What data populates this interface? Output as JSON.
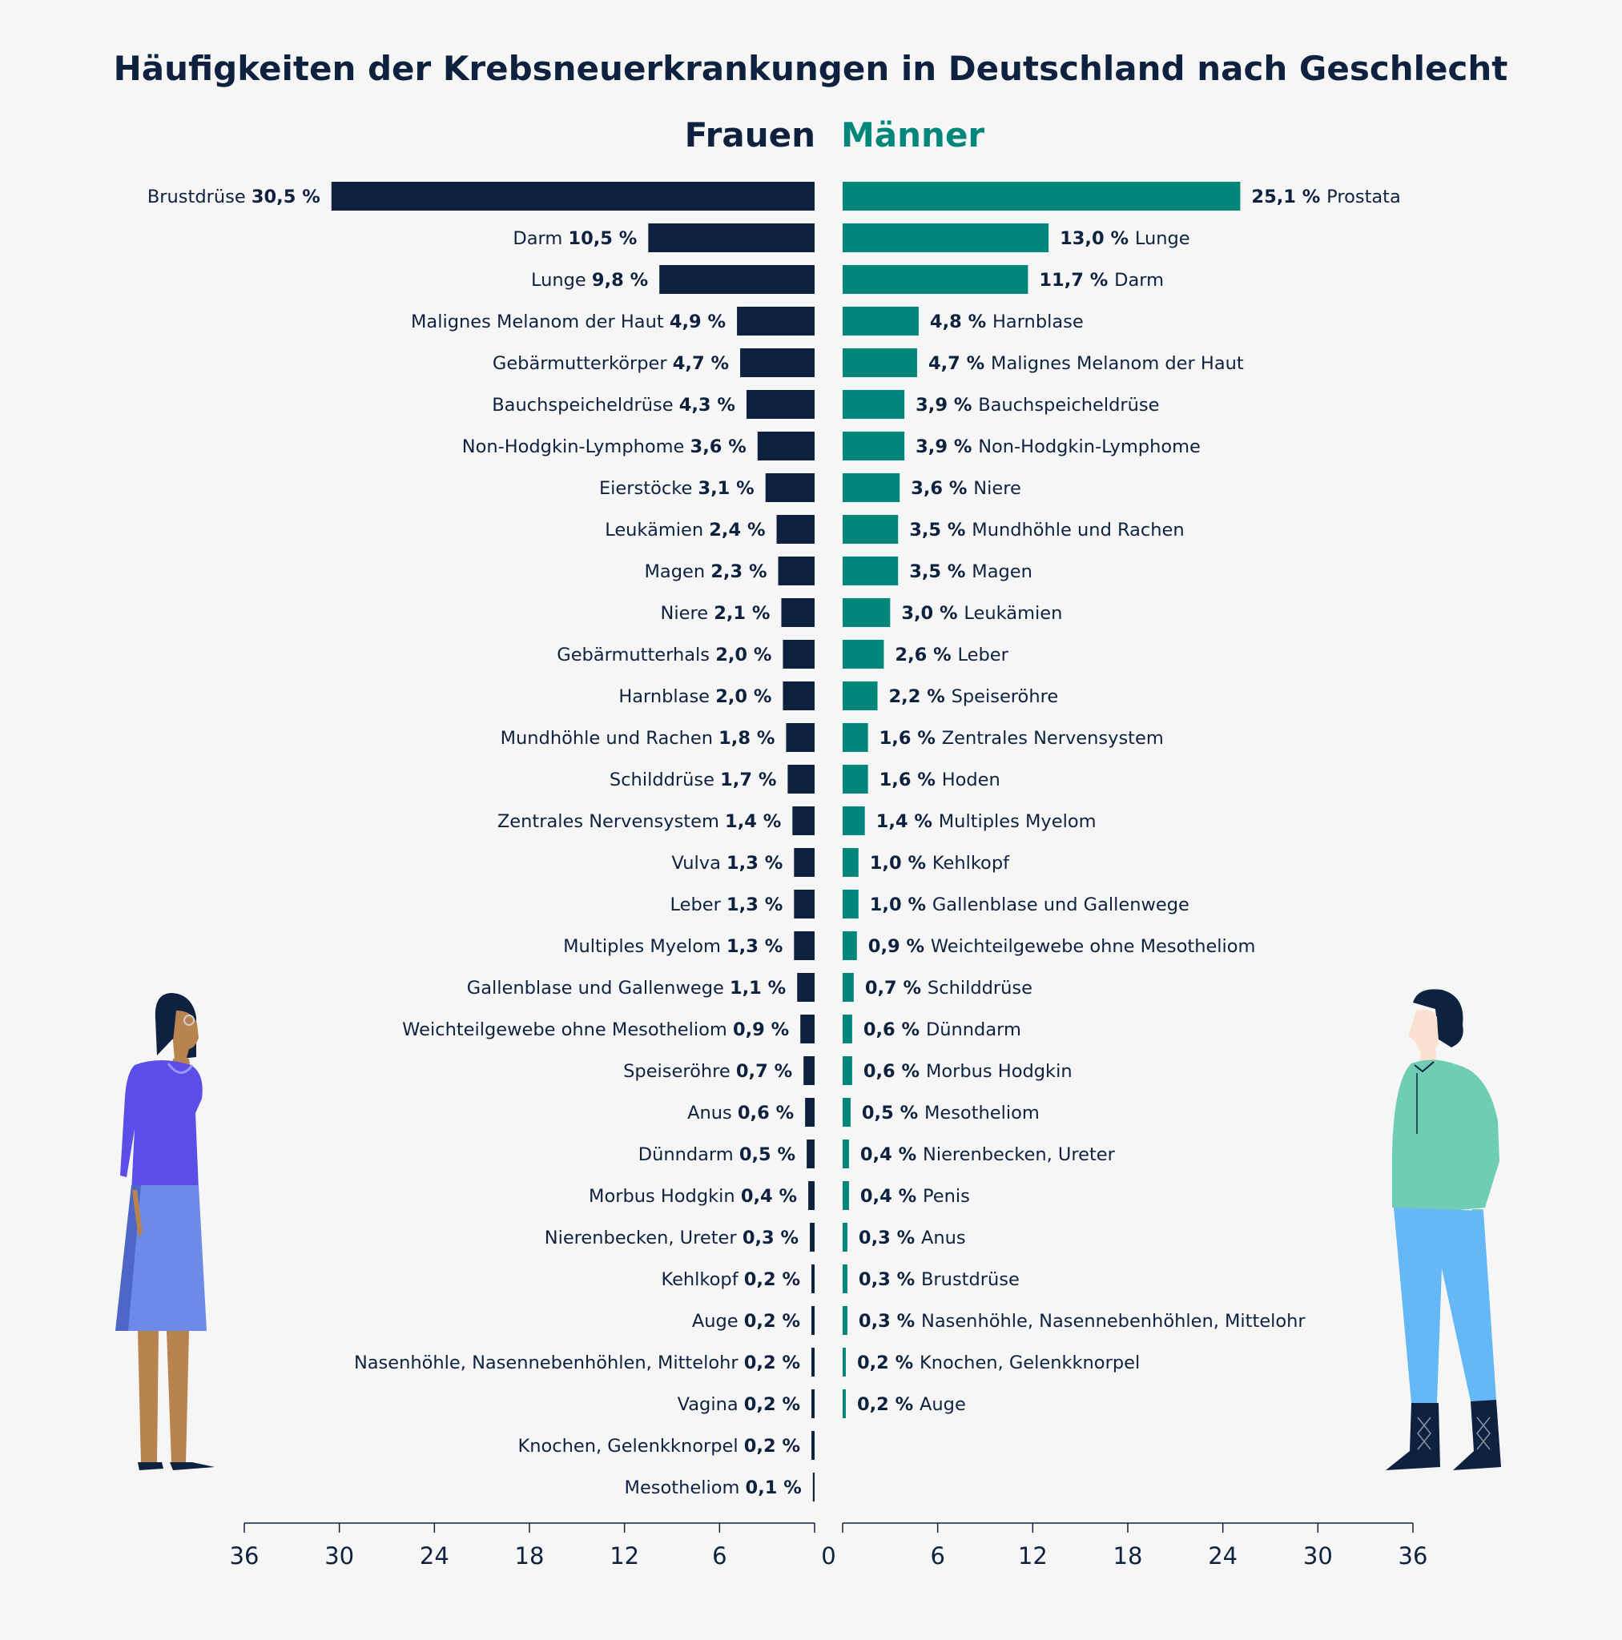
{
  "chart_data": {
    "type": "bar",
    "title": "Häufigkeiten der Krebsneuerkrankungen in Deutschland nach Geschlecht",
    "axis": {
      "ticks": [
        0,
        6,
        12,
        18,
        24,
        30,
        36
      ],
      "range": [
        0,
        36
      ]
    },
    "colors": {
      "frauen": "#0e2240",
      "maenner": "#00867b",
      "text": "#0e2240"
    },
    "series": [
      {
        "name": "Frauen",
        "side": "left",
        "items": [
          {
            "label": "Brustdrüse",
            "value": 30.5,
            "value_text": "30,5 %"
          },
          {
            "label": "Darm",
            "value": 10.5,
            "value_text": "10,5 %"
          },
          {
            "label": "Lunge",
            "value": 9.8,
            "value_text": "9,8 %"
          },
          {
            "label": "Malignes Melanom der Haut",
            "value": 4.9,
            "value_text": "4,9 %"
          },
          {
            "label": "Gebärmutterkörper",
            "value": 4.7,
            "value_text": "4,7 %"
          },
          {
            "label": "Bauchspeicheldrüse",
            "value": 4.3,
            "value_text": "4,3 %"
          },
          {
            "label": "Non-Hodgkin-Lymphome",
            "value": 3.6,
            "value_text": "3,6 %"
          },
          {
            "label": "Eierstöcke",
            "value": 3.1,
            "value_text": "3,1 %"
          },
          {
            "label": "Leukämien",
            "value": 2.4,
            "value_text": "2,4 %"
          },
          {
            "label": "Magen",
            "value": 2.3,
            "value_text": "2,3 %"
          },
          {
            "label": "Niere",
            "value": 2.1,
            "value_text": "2,1 %"
          },
          {
            "label": "Gebärmutterhals",
            "value": 2.0,
            "value_text": "2,0 %"
          },
          {
            "label": "Harnblase",
            "value": 2.0,
            "value_text": "2,0 %"
          },
          {
            "label": "Mundhöhle und Rachen",
            "value": 1.8,
            "value_text": "1,8 %"
          },
          {
            "label": "Schilddrüse",
            "value": 1.7,
            "value_text": "1,7 %"
          },
          {
            "label": "Zentrales Nervensystem",
            "value": 1.4,
            "value_text": "1,4 %"
          },
          {
            "label": "Vulva",
            "value": 1.3,
            "value_text": "1,3 %"
          },
          {
            "label": "Leber",
            "value": 1.3,
            "value_text": "1,3 %"
          },
          {
            "label": "Multiples Myelom",
            "value": 1.3,
            "value_text": "1,3 %"
          },
          {
            "label": "Gallenblase und Gallenwege",
            "value": 1.1,
            "value_text": "1,1 %"
          },
          {
            "label": "Weichteilgewebe ohne Mesotheliom",
            "value": 0.9,
            "value_text": "0,9 %"
          },
          {
            "label": "Speiseröhre",
            "value": 0.7,
            "value_text": "0,7 %"
          },
          {
            "label": "Anus",
            "value": 0.6,
            "value_text": "0,6 %"
          },
          {
            "label": "Dünndarm",
            "value": 0.5,
            "value_text": "0,5 %"
          },
          {
            "label": "Morbus Hodgkin",
            "value": 0.4,
            "value_text": "0,4 %"
          },
          {
            "label": "Nierenbecken, Ureter",
            "value": 0.3,
            "value_text": "0,3 %"
          },
          {
            "label": "Kehlkopf",
            "value": 0.2,
            "value_text": "0,2 %"
          },
          {
            "label": "Auge",
            "value": 0.2,
            "value_text": "0,2 %"
          },
          {
            "label": "Nasenhöhle, Nasennebenhöhlen, Mittelohr",
            "value": 0.2,
            "value_text": "0,2 %"
          },
          {
            "label": "Vagina",
            "value": 0.2,
            "value_text": "0,2 %"
          },
          {
            "label": "Knochen, Gelenkknorpel",
            "value": 0.2,
            "value_text": "0,2 %"
          },
          {
            "label": "Mesotheliom",
            "value": 0.1,
            "value_text": "0,1 %"
          }
        ]
      },
      {
        "name": "Männer",
        "side": "right",
        "items": [
          {
            "label": "Prostata",
            "value": 25.1,
            "value_text": "25,1 %"
          },
          {
            "label": "Lunge",
            "value": 13.0,
            "value_text": "13,0 %"
          },
          {
            "label": "Darm",
            "value": 11.7,
            "value_text": "11,7 %"
          },
          {
            "label": "Harnblase",
            "value": 4.8,
            "value_text": "4,8 %"
          },
          {
            "label": "Malignes Melanom der Haut",
            "value": 4.7,
            "value_text": "4,7 %"
          },
          {
            "label": "Bauchspeicheldrüse",
            "value": 3.9,
            "value_text": "3,9 %"
          },
          {
            "label": "Non-Hodgkin-Lymphome",
            "value": 3.9,
            "value_text": "3,9 %"
          },
          {
            "label": "Niere",
            "value": 3.6,
            "value_text": "3,6 %"
          },
          {
            "label": "Mundhöhle und Rachen",
            "value": 3.5,
            "value_text": "3,5 %"
          },
          {
            "label": "Magen",
            "value": 3.5,
            "value_text": "3,5 %"
          },
          {
            "label": "Leukämien",
            "value": 3.0,
            "value_text": "3,0 %"
          },
          {
            "label": "Leber",
            "value": 2.6,
            "value_text": "2,6 %"
          },
          {
            "label": "Speiseröhre",
            "value": 2.2,
            "value_text": "2,2 %"
          },
          {
            "label": "Zentrales Nervensystem",
            "value": 1.6,
            "value_text": "1,6 %"
          },
          {
            "label": "Hoden",
            "value": 1.6,
            "value_text": "1,6 %"
          },
          {
            "label": "Multiples Myelom",
            "value": 1.4,
            "value_text": "1,4 %"
          },
          {
            "label": "Kehlkopf",
            "value": 1.0,
            "value_text": "1,0 %"
          },
          {
            "label": "Gallenblase und Gallenwege",
            "value": 1.0,
            "value_text": "1,0 %"
          },
          {
            "label": "Weichteilgewebe ohne Mesotheliom",
            "value": 0.9,
            "value_text": "0,9 %"
          },
          {
            "label": "Schilddrüse",
            "value": 0.7,
            "value_text": "0,7 %"
          },
          {
            "label": "Dünndarm",
            "value": 0.6,
            "value_text": "0,6 %"
          },
          {
            "label": "Morbus Hodgkin",
            "value": 0.6,
            "value_text": "0,6 %"
          },
          {
            "label": "Mesotheliom",
            "value": 0.5,
            "value_text": "0,5 %"
          },
          {
            "label": "Nierenbecken, Ureter",
            "value": 0.4,
            "value_text": "0,4 %"
          },
          {
            "label": "Penis",
            "value": 0.4,
            "value_text": "0,4 %"
          },
          {
            "label": "Anus",
            "value": 0.3,
            "value_text": "0,3 %"
          },
          {
            "label": "Brustdrüse",
            "value": 0.3,
            "value_text": "0,3 %"
          },
          {
            "label": "Nasenhöhle, Nasennebenhöhlen, Mittelohr",
            "value": 0.3,
            "value_text": "0,3 %"
          },
          {
            "label": "Knochen, Gelenkknorpel",
            "value": 0.2,
            "value_text": "0,2 %"
          },
          {
            "label": "Auge",
            "value": 0.2,
            "value_text": "0,2 %"
          }
        ]
      }
    ]
  }
}
